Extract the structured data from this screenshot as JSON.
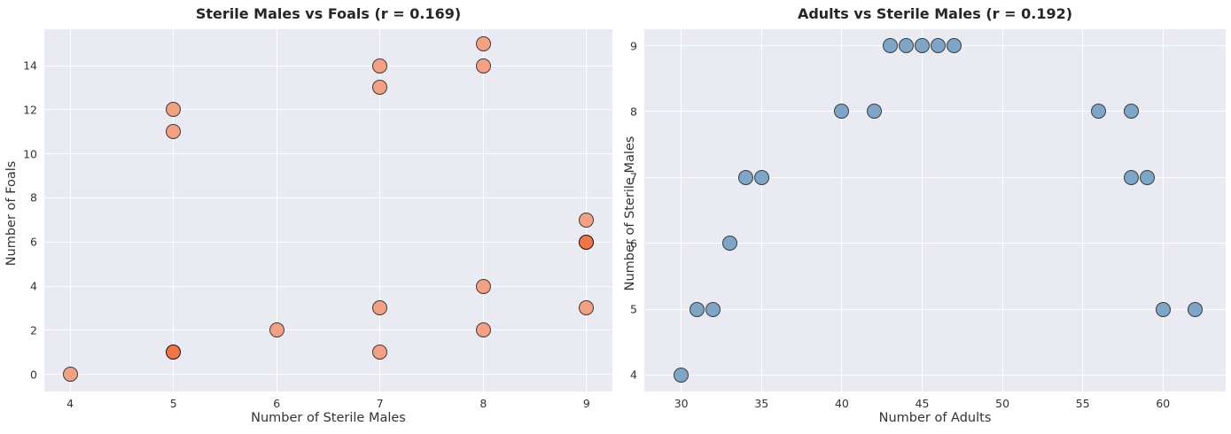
{
  "figure": {
    "background": "#ffffff",
    "plot_background": "#eaeaf2",
    "grid_color": "#ffffff",
    "title_color": "#262626",
    "tick_color": "#333333",
    "left_marker_fill": "#f2a184",
    "left_marker_fill_overlapped": "#ee7748",
    "left_marker_edge": "#403a35",
    "right_marker_fill": "#7fa6c7",
    "right_marker_edge": "#373b41"
  },
  "chart_data": [
    {
      "type": "scatter",
      "title": "Sterile Males vs Foals (r = 0.169)",
      "xlabel": "Number of Sterile Males",
      "ylabel": "Number of Foals",
      "correlation_r": 0.169,
      "grid": true,
      "legend": false,
      "xticks": [
        4,
        5,
        6,
        7,
        8,
        9
      ],
      "yticks": [
        0,
        2,
        4,
        6,
        8,
        10,
        12,
        14
      ],
      "xlim": [
        3.75,
        9.25
      ],
      "ylim": [
        -0.78,
        15.65
      ],
      "points": [
        [
          4,
          0
        ],
        [
          5,
          1,
          2
        ],
        [
          5,
          11
        ],
        [
          5,
          12
        ],
        [
          6,
          2
        ],
        [
          7,
          1
        ],
        [
          7,
          3
        ],
        [
          7,
          13
        ],
        [
          7,
          14
        ],
        [
          8,
          2
        ],
        [
          8,
          4
        ],
        [
          8,
          14
        ],
        [
          8,
          15
        ],
        [
          9,
          3
        ],
        [
          9,
          6,
          2
        ],
        [
          9,
          7
        ]
      ]
    },
    {
      "type": "scatter",
      "title": "Adults vs Sterile Males (r = 0.192)",
      "xlabel": "Number of Adults",
      "ylabel": "Number of Sterile Males",
      "correlation_r": 0.192,
      "grid": true,
      "legend": false,
      "xticks": [
        30,
        35,
        40,
        45,
        50,
        55,
        60
      ],
      "yticks": [
        4,
        5,
        6,
        7,
        8,
        9
      ],
      "xlim": [
        27.7,
        63.9
      ],
      "ylim": [
        3.75,
        9.25
      ],
      "points": [
        [
          30,
          4
        ],
        [
          31,
          5
        ],
        [
          32,
          5
        ],
        [
          33,
          6
        ],
        [
          34,
          7
        ],
        [
          35,
          7
        ],
        [
          40,
          8
        ],
        [
          42,
          8
        ],
        [
          43,
          9
        ],
        [
          44,
          9
        ],
        [
          45,
          9
        ],
        [
          46,
          9
        ],
        [
          47,
          9
        ],
        [
          56,
          8
        ],
        [
          58,
          8
        ],
        [
          58,
          7
        ],
        [
          59,
          7
        ],
        [
          60,
          5
        ],
        [
          62,
          5
        ]
      ]
    }
  ]
}
